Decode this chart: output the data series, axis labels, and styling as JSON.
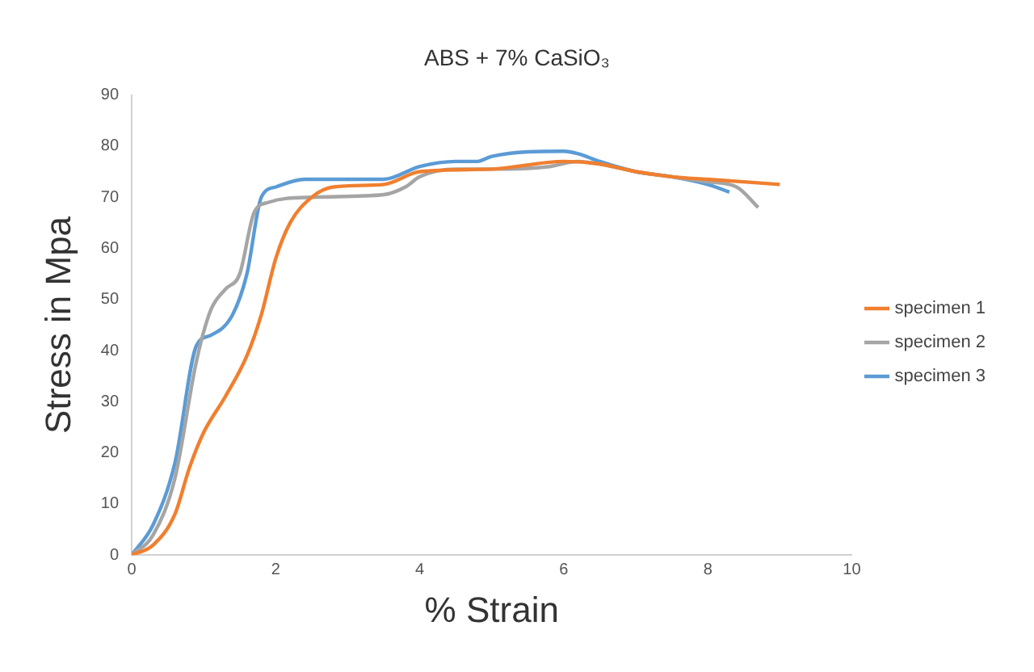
{
  "chart_data": {
    "type": "line",
    "title": "ABS + 7% CaSiO₃",
    "xlabel": "% Strain",
    "ylabel": "Stress in Mpa",
    "xlim": [
      0,
      10
    ],
    "xticks": [
      0,
      2,
      4,
      6,
      8,
      10
    ],
    "ylim": [
      0,
      90
    ],
    "yticks": [
      0,
      10,
      20,
      30,
      40,
      50,
      60,
      70,
      80,
      90
    ],
    "grid": false,
    "legend": "right",
    "marker": "none",
    "line_style": "solid",
    "series": [
      {
        "name": "specimen 1",
        "color": "#f07f2f",
        "x": [
          0,
          0.3,
          0.6,
          0.8,
          1.0,
          1.3,
          1.6,
          1.8,
          2.0,
          2.2,
          2.5,
          2.8,
          3.5,
          4,
          5,
          6,
          6.5,
          7,
          7.5,
          8,
          9
        ],
        "values": [
          0,
          2,
          8,
          17,
          24,
          31,
          39,
          47,
          58,
          65,
          70,
          72,
          72.5,
          75,
          75.5,
          77,
          76.5,
          75,
          74,
          73.5,
          72.5
        ]
      },
      {
        "name": "specimen 2",
        "color": "#a5a5a5",
        "x": [
          0,
          0.3,
          0.6,
          0.9,
          1.1,
          1.3,
          1.5,
          1.7,
          1.9,
          2.5,
          3.5,
          3.8,
          4,
          4.5,
          5,
          5.8,
          6.2,
          6.5,
          7,
          7.5,
          8,
          8.4,
          8.7
        ],
        "values": [
          0,
          4,
          15,
          38,
          48,
          52,
          55,
          67,
          69,
          70,
          70.5,
          72,
          74,
          75.5,
          75.5,
          76,
          77,
          76.5,
          75,
          74,
          73,
          72,
          68
        ]
      },
      {
        "name": "specimen 3",
        "color": "#5b9bd5",
        "x": [
          0,
          0.3,
          0.6,
          0.9,
          1.1,
          1.4,
          1.6,
          1.8,
          2.0,
          2.4,
          3,
          3.5,
          4,
          4.5,
          4.8,
          5,
          6,
          6.2,
          6.5,
          7,
          7.5,
          8,
          8.3
        ],
        "values": [
          0,
          6,
          18,
          41,
          43,
          47,
          55,
          70,
          72,
          73.5,
          73.5,
          73.5,
          76,
          77,
          77,
          78,
          79,
          78.5,
          77,
          75,
          74,
          72.5,
          71
        ]
      }
    ]
  }
}
